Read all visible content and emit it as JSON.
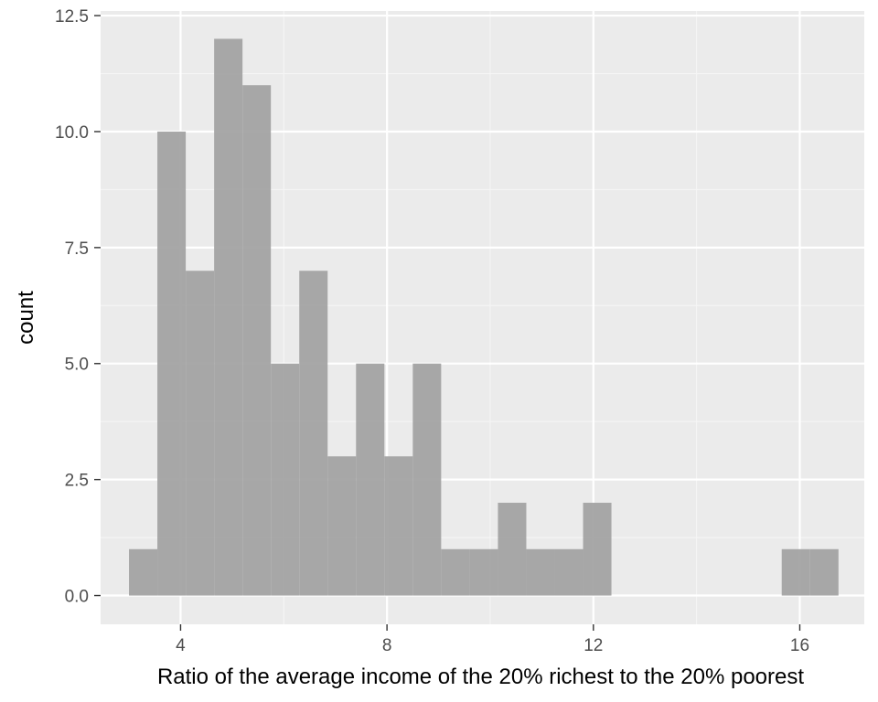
{
  "chart_data": {
    "type": "bar",
    "subtype": "histogram",
    "title": "",
    "xlabel": "Ratio of the average income of the 20% richest to the 20% poorest",
    "ylabel": "count",
    "xlim": [
      2.45,
      17.25
    ],
    "ylim": [
      -0.62,
      12.6
    ],
    "xticks": [
      4,
      8,
      12,
      16
    ],
    "xtick_labels": [
      "4",
      "8",
      "12",
      "16"
    ],
    "xminor": [
      6,
      10,
      14
    ],
    "yticks": [
      0,
      2.5,
      5,
      7.5,
      10,
      12.5
    ],
    "ytick_labels": [
      "0.0",
      "2.5",
      "5.0",
      "7.5",
      "10.0",
      "12.5"
    ],
    "yminor": [
      1.25,
      3.75,
      6.25,
      8.75,
      11.25
    ],
    "grid": true,
    "bin_width": 0.55,
    "bins": [
      {
        "x0": 3.0,
        "x1": 3.55,
        "count": 1
      },
      {
        "x0": 3.55,
        "x1": 4.1,
        "count": 10
      },
      {
        "x0": 4.1,
        "x1": 4.65,
        "count": 7
      },
      {
        "x0": 4.65,
        "x1": 5.2,
        "count": 12
      },
      {
        "x0": 5.2,
        "x1": 5.75,
        "count": 11
      },
      {
        "x0": 5.75,
        "x1": 6.3,
        "count": 5
      },
      {
        "x0": 6.3,
        "x1": 6.85,
        "count": 7
      },
      {
        "x0": 6.85,
        "x1": 7.4,
        "count": 3
      },
      {
        "x0": 7.4,
        "x1": 7.95,
        "count": 5
      },
      {
        "x0": 7.95,
        "x1": 8.5,
        "count": 3
      },
      {
        "x0": 8.5,
        "x1": 9.05,
        "count": 5
      },
      {
        "x0": 9.05,
        "x1": 9.6,
        "count": 1
      },
      {
        "x0": 9.6,
        "x1": 10.15,
        "count": 1
      },
      {
        "x0": 10.15,
        "x1": 10.7,
        "count": 2
      },
      {
        "x0": 10.7,
        "x1": 11.25,
        "count": 1
      },
      {
        "x0": 11.25,
        "x1": 11.8,
        "count": 1
      },
      {
        "x0": 11.8,
        "x1": 12.35,
        "count": 2
      },
      {
        "x0": 12.35,
        "x1": 12.9,
        "count": 0
      },
      {
        "x0": 12.9,
        "x1": 13.45,
        "count": 0
      },
      {
        "x0": 13.45,
        "x1": 14.0,
        "count": 0
      },
      {
        "x0": 14.0,
        "x1": 14.55,
        "count": 0
      },
      {
        "x0": 14.55,
        "x1": 15.1,
        "count": 0
      },
      {
        "x0": 15.1,
        "x1": 15.65,
        "count": 0
      },
      {
        "x0": 15.65,
        "x1": 16.2,
        "count": 1
      },
      {
        "x0": 16.2,
        "x1": 16.75,
        "count": 1
      }
    ],
    "colors": {
      "bar": "#a3a3a3",
      "panel": "#ebebeb",
      "grid_major": "#ffffff",
      "grid_minor": "#f5f5f5",
      "tick_text": "#4d4d4d",
      "tick_mark": "#333333"
    }
  }
}
